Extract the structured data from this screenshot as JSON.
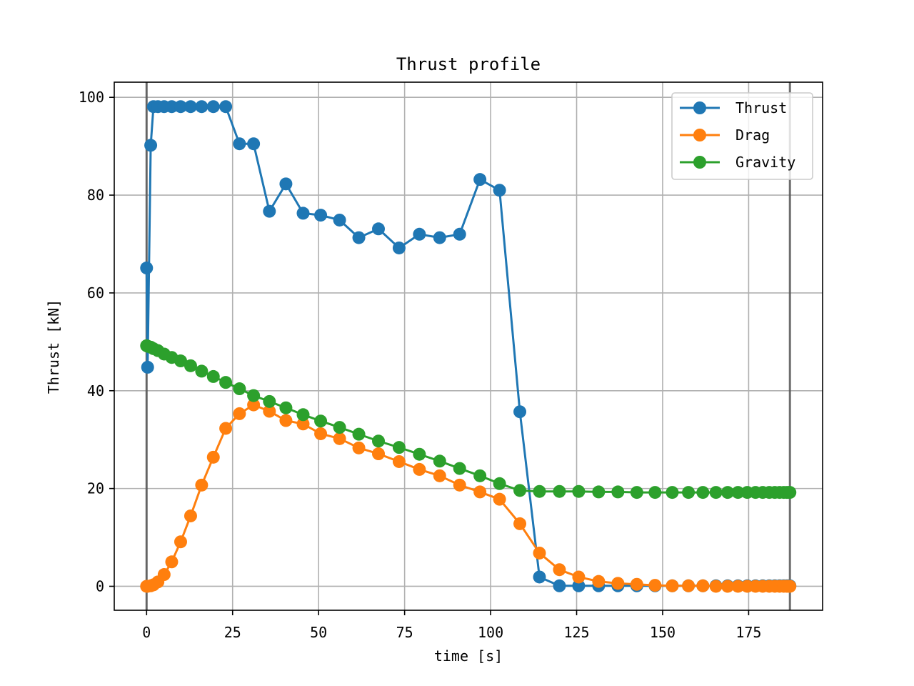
{
  "chart_data": {
    "type": "line",
    "title": "Thrust profile",
    "xlabel": "time [s]",
    "ylabel": "Thrust [kN]",
    "xlim": [
      -9.4,
      196.5
    ],
    "ylim": [
      -4.9,
      103.1
    ],
    "xticks": [
      0,
      25,
      50,
      75,
      100,
      125,
      150,
      175
    ],
    "yticks": [
      0,
      20,
      40,
      60,
      80,
      100
    ],
    "grid": true,
    "legend_position": "upper right",
    "vlines": [
      0,
      187
    ],
    "vline_color": "#555555",
    "series": [
      {
        "name": "Thrust",
        "color": "#1f77b4",
        "x": [
          0,
          0.3,
          1.2,
          2.0,
          3.3,
          5.1,
          7.3,
          9.9,
          12.8,
          16.0,
          19.4,
          23.0,
          27.0,
          31.1,
          35.7,
          40.5,
          45.5,
          50.6,
          56.1,
          61.7,
          67.4,
          73.4,
          79.3,
          85.2,
          91.0,
          96.9,
          102.6,
          108.5,
          114.2,
          120.0,
          125.6,
          131.4,
          137.0,
          142.5,
          147.8,
          152.8,
          157.5,
          161.7,
          165.5,
          168.9,
          171.9,
          174.6,
          177.0,
          179.1,
          181.0,
          182.6,
          184.0,
          185.2,
          186.1,
          186.8,
          187.0
        ],
        "y": [
          65.1,
          44.8,
          90.2,
          98.1,
          98.1,
          98.1,
          98.1,
          98.1,
          98.1,
          98.1,
          98.1,
          98.1,
          90.5,
          90.5,
          76.7,
          82.3,
          76.3,
          75.9,
          74.9,
          71.3,
          73.1,
          69.2,
          72.0,
          71.3,
          72.0,
          83.2,
          81.0,
          35.7,
          1.9,
          0.1,
          0.1,
          0.1,
          0.1,
          0.1,
          0.1,
          0.1,
          0.1,
          0.1,
          0.1,
          0.1,
          0.1,
          0.1,
          0.1,
          0.1,
          0.1,
          0.1,
          0.1,
          0.1,
          0.1,
          0.1,
          0.1
        ]
      },
      {
        "name": "Drag",
        "color": "#ff7f0e",
        "x": [
          0,
          0.3,
          1.2,
          2.0,
          3.3,
          5.1,
          7.3,
          9.9,
          12.8,
          16.0,
          19.4,
          23.0,
          27.0,
          31.1,
          35.7,
          40.5,
          45.5,
          50.6,
          56.1,
          61.7,
          67.4,
          73.4,
          79.3,
          85.2,
          91.0,
          96.9,
          102.6,
          108.5,
          114.2,
          120.0,
          125.6,
          131.4,
          137.0,
          142.5,
          147.8,
          152.8,
          157.5,
          161.7,
          165.5,
          168.9,
          171.9,
          174.6,
          177.0,
          179.1,
          181.0,
          182.6,
          184.0,
          185.2,
          186.1,
          186.8,
          187.0
        ],
        "y": [
          0.0,
          0.0,
          0.1,
          0.3,
          0.9,
          2.4,
          5.0,
          9.1,
          14.4,
          20.7,
          26.4,
          32.3,
          35.3,
          37.1,
          35.8,
          33.9,
          33.2,
          31.2,
          30.2,
          28.3,
          27.1,
          25.5,
          23.9,
          22.6,
          20.7,
          19.3,
          17.8,
          12.8,
          6.8,
          3.4,
          1.9,
          1.0,
          0.6,
          0.4,
          0.2,
          0.1,
          0.1,
          0.1,
          0.0,
          0.0,
          0.0,
          0.0,
          0.0,
          0.0,
          0.0,
          0.0,
          0.0,
          0.0,
          0.0,
          0.0,
          0.0
        ]
      },
      {
        "name": "Gravity",
        "color": "#2ca02c",
        "x": [
          0,
          0.3,
          1.2,
          2.0,
          3.3,
          5.1,
          7.3,
          9.9,
          12.8,
          16.0,
          19.4,
          23.0,
          27.0,
          31.1,
          35.7,
          40.5,
          45.5,
          50.6,
          56.1,
          61.7,
          67.4,
          73.4,
          79.3,
          85.2,
          91.0,
          96.9,
          102.6,
          108.5,
          114.2,
          120.0,
          125.6,
          131.4,
          137.0,
          142.5,
          147.8,
          152.8,
          157.5,
          161.7,
          165.5,
          168.9,
          171.9,
          174.6,
          177.0,
          179.1,
          181.0,
          182.6,
          184.0,
          185.2,
          186.1,
          186.8,
          187.0
        ],
        "y": [
          49.2,
          49.1,
          48.9,
          48.6,
          48.2,
          47.5,
          46.8,
          46.1,
          45.1,
          44.0,
          42.9,
          41.7,
          40.4,
          39.0,
          37.8,
          36.5,
          35.1,
          33.8,
          32.5,
          31.1,
          29.7,
          28.4,
          27.0,
          25.6,
          24.1,
          22.6,
          21.0,
          19.6,
          19.4,
          19.4,
          19.4,
          19.3,
          19.3,
          19.2,
          19.2,
          19.2,
          19.2,
          19.2,
          19.2,
          19.2,
          19.2,
          19.2,
          19.2,
          19.2,
          19.2,
          19.2,
          19.2,
          19.2,
          19.2,
          19.2,
          19.2
        ]
      }
    ]
  }
}
